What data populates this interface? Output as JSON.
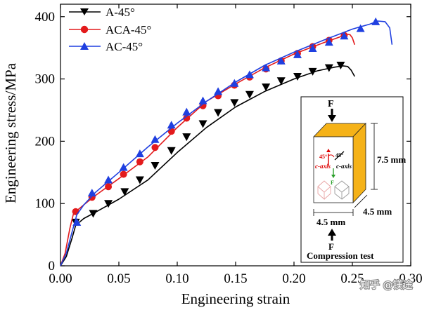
{
  "chart_data": {
    "type": "line",
    "xlabel": "Engineering strain",
    "ylabel": "Engineering stress/MPa",
    "xlim": [
      0.0,
      0.3
    ],
    "ylim": [
      0,
      420
    ],
    "xticks": [
      "0.00",
      "0.05",
      "0.10",
      "0.15",
      "0.20",
      "0.25",
      "0.30"
    ],
    "yticks": [
      "0",
      "100",
      "200",
      "300",
      "400"
    ],
    "legend_position": "top-left",
    "series": [
      {
        "name": "A-45°",
        "color": "#000000",
        "marker": "triangle-down",
        "curve": [
          [
            0,
            0
          ],
          [
            0.005,
            15
          ],
          [
            0.01,
            45
          ],
          [
            0.013,
            65
          ],
          [
            0.02,
            76
          ],
          [
            0.03,
            86
          ],
          [
            0.05,
            107
          ],
          [
            0.075,
            138
          ],
          [
            0.1,
            182
          ],
          [
            0.125,
            222
          ],
          [
            0.15,
            255
          ],
          [
            0.175,
            280
          ],
          [
            0.2,
            300
          ],
          [
            0.22,
            313
          ],
          [
            0.235,
            319
          ],
          [
            0.242,
            321
          ],
          [
            0.246,
            320
          ],
          [
            0.249,
            314
          ],
          [
            0.252,
            304
          ]
        ],
        "markers": [
          [
            0.013,
            70
          ],
          [
            0.028,
            84
          ],
          [
            0.041,
            100
          ],
          [
            0.055,
            119
          ],
          [
            0.068,
            138
          ],
          [
            0.081,
            161
          ],
          [
            0.095,
            185
          ],
          [
            0.108,
            207
          ],
          [
            0.122,
            228
          ],
          [
            0.135,
            246
          ],
          [
            0.149,
            262
          ],
          [
            0.162,
            275
          ],
          [
            0.176,
            287
          ],
          [
            0.189,
            297
          ],
          [
            0.203,
            304
          ],
          [
            0.216,
            312
          ],
          [
            0.23,
            318
          ],
          [
            0.24,
            322
          ]
        ]
      },
      {
        "name": "ACA-45°",
        "color": "#e31a1c",
        "marker": "circle",
        "curve": [
          [
            0,
            0
          ],
          [
            0.004,
            20
          ],
          [
            0.008,
            60
          ],
          [
            0.011,
            83
          ],
          [
            0.013,
            87
          ],
          [
            0.02,
            98
          ],
          [
            0.03,
            113
          ],
          [
            0.05,
            140
          ],
          [
            0.075,
            175
          ],
          [
            0.1,
            222
          ],
          [
            0.125,
            264
          ],
          [
            0.15,
            292
          ],
          [
            0.175,
            318
          ],
          [
            0.2,
            340
          ],
          [
            0.225,
            358
          ],
          [
            0.24,
            368
          ],
          [
            0.245,
            372
          ],
          [
            0.248,
            371
          ],
          [
            0.25,
            366
          ],
          [
            0.252,
            355
          ]
        ],
        "markers": [
          [
            0.013,
            87
          ],
          [
            0.027,
            110
          ],
          [
            0.041,
            127
          ],
          [
            0.054,
            147
          ],
          [
            0.068,
            167
          ],
          [
            0.081,
            190
          ],
          [
            0.095,
            216
          ],
          [
            0.108,
            237
          ],
          [
            0.122,
            257
          ],
          [
            0.135,
            273
          ],
          [
            0.149,
            290
          ],
          [
            0.162,
            303
          ],
          [
            0.176,
            316
          ],
          [
            0.189,
            329
          ],
          [
            0.203,
            341
          ],
          [
            0.216,
            352
          ],
          [
            0.23,
            362
          ],
          [
            0.243,
            370
          ]
        ]
      },
      {
        "name": "AC-45°",
        "color": "#1f3fe0",
        "marker": "triangle-up",
        "curve": [
          [
            0,
            0
          ],
          [
            0.005,
            20
          ],
          [
            0.01,
            55
          ],
          [
            0.014,
            82
          ],
          [
            0.02,
            98
          ],
          [
            0.03,
            118
          ],
          [
            0.05,
            150
          ],
          [
            0.075,
            191
          ],
          [
            0.1,
            229
          ],
          [
            0.125,
            264
          ],
          [
            0.15,
            295
          ],
          [
            0.175,
            322
          ],
          [
            0.2,
            343
          ],
          [
            0.225,
            362
          ],
          [
            0.25,
            380
          ],
          [
            0.265,
            388
          ],
          [
            0.272,
            393
          ],
          [
            0.278,
            392
          ],
          [
            0.282,
            382
          ],
          [
            0.284,
            355
          ]
        ],
        "markers": [
          [
            0.014,
            70
          ],
          [
            0.027,
            117
          ],
          [
            0.041,
            138
          ],
          [
            0.054,
            158
          ],
          [
            0.068,
            180
          ],
          [
            0.081,
            203
          ],
          [
            0.095,
            226
          ],
          [
            0.108,
            247
          ],
          [
            0.122,
            265
          ],
          [
            0.135,
            280
          ],
          [
            0.149,
            293
          ],
          [
            0.162,
            307
          ],
          [
            0.176,
            318
          ],
          [
            0.189,
            329
          ],
          [
            0.203,
            339
          ],
          [
            0.216,
            349
          ],
          [
            0.23,
            359
          ],
          [
            0.243,
            369
          ],
          [
            0.257,
            381
          ],
          [
            0.27,
            392
          ]
        ]
      }
    ]
  },
  "inset": {
    "force_top": "F",
    "force_bottom": "F",
    "dim_height": "7.5 mm",
    "dim_depth": "4.5 mm",
    "dim_width": "4.5 mm",
    "angle_red": "45°",
    "angle_black": "45°",
    "c_axis_red": "c-axis",
    "c_axis_black": "c-axis",
    "force_inner": "F",
    "caption": "Compression test"
  },
  "watermark": "知乎 @镁途"
}
